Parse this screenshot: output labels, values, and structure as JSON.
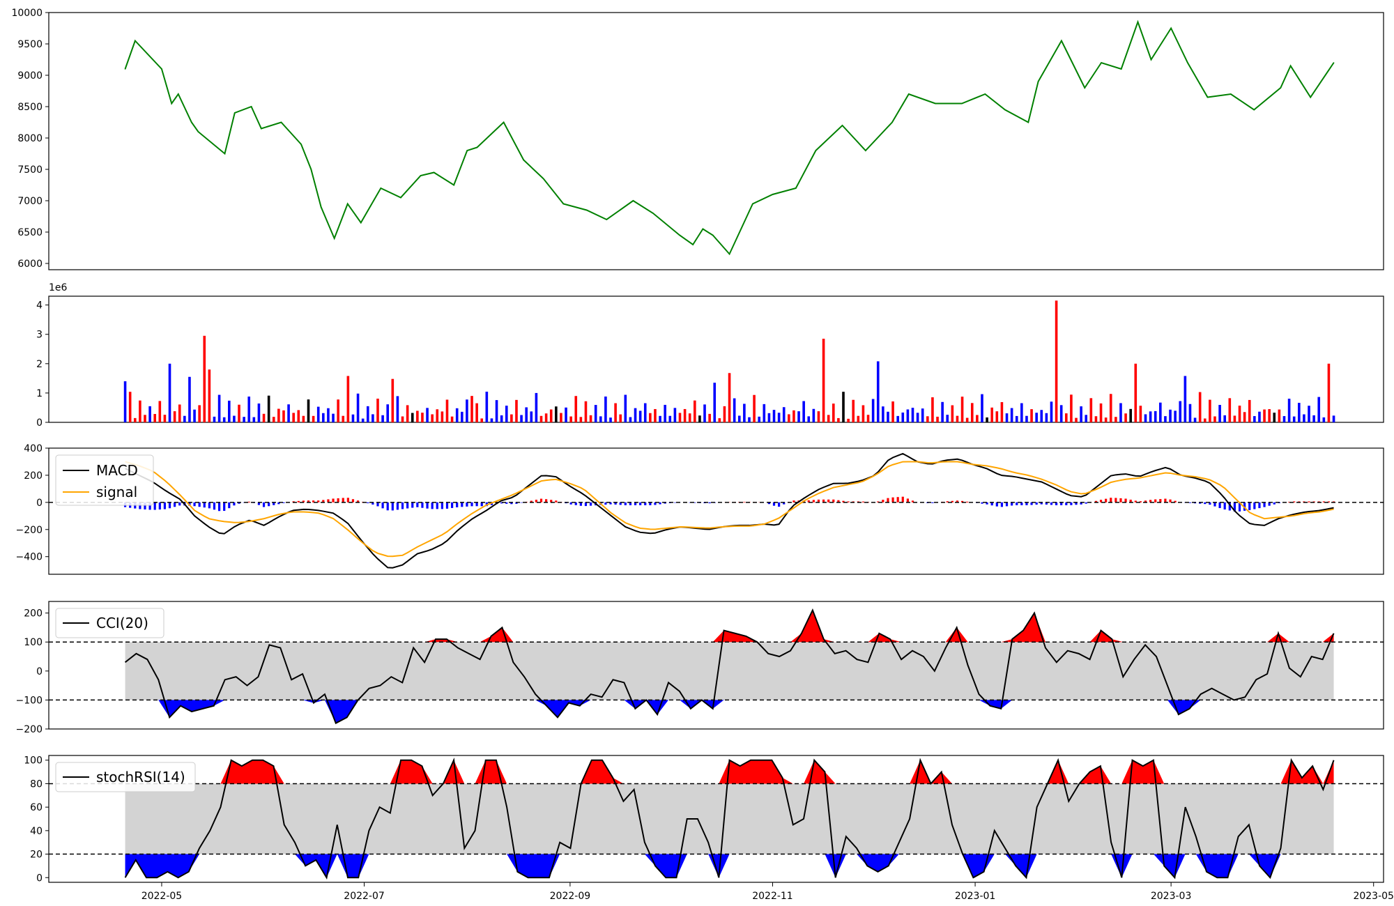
{
  "chart_data": [
    {
      "type": "line",
      "panel": "price",
      "color": "#008000",
      "ylim": [
        5900,
        10000
      ],
      "yticks": [
        "6000",
        "6500",
        "7000",
        "7500",
        "8000",
        "8500",
        "9000",
        "9500",
        "10000"
      ],
      "x": [
        "2022-04-20",
        "2022-04-23",
        "2022-05-01",
        "2022-05-04",
        "2022-05-06",
        "2022-05-10",
        "2022-05-12",
        "2022-05-20",
        "2022-05-23",
        "2022-05-28",
        "2022-05-31",
        "2022-06-06",
        "2022-06-12",
        "2022-06-15",
        "2022-06-18",
        "2022-06-22",
        "2022-06-26",
        "2022-06-30",
        "2022-07-06",
        "2022-07-12",
        "2022-07-18",
        "2022-07-22",
        "2022-07-28",
        "2022-08-01",
        "2022-08-04",
        "2022-08-12",
        "2022-08-18",
        "2022-08-24",
        "2022-08-30",
        "2022-09-06",
        "2022-09-12",
        "2022-09-20",
        "2022-09-26",
        "2022-10-04",
        "2022-10-08",
        "2022-10-11",
        "2022-10-14",
        "2022-10-19",
        "2022-10-26",
        "2022-11-01",
        "2022-11-08",
        "2022-11-14",
        "2022-11-22",
        "2022-11-29",
        "2022-12-07",
        "2022-12-12",
        "2022-12-20",
        "2022-12-28",
        "2023-01-04",
        "2023-01-10",
        "2023-01-17",
        "2023-01-20",
        "2023-01-27",
        "2023-02-03",
        "2023-02-08",
        "2023-02-14",
        "2023-02-19",
        "2023-02-23",
        "2023-03-01",
        "2023-03-06",
        "2023-03-12",
        "2023-03-19",
        "2023-03-26",
        "2023-04-03",
        "2023-04-06",
        "2023-04-12",
        "2023-04-19"
      ],
      "values": [
        9100,
        9550,
        9100,
        8550,
        8700,
        8250,
        8100,
        7750,
        8400,
        8500,
        8150,
        8250,
        7900,
        7500,
        6900,
        6400,
        6950,
        6650,
        7200,
        7050,
        7400,
        7450,
        7250,
        7800,
        7850,
        8250,
        7650,
        7350,
        6950,
        6850,
        6700,
        7000,
        6800,
        6450,
        6300,
        6550,
        6450,
        6150,
        6950,
        7100,
        7200,
        7800,
        8200,
        7800,
        8250,
        8700,
        8550,
        8550,
        8700,
        8450,
        8250,
        8900,
        9550,
        8800,
        9200,
        9100,
        9850,
        9250,
        9750,
        9200,
        8650,
        8700,
        8450,
        8800,
        9150,
        8650,
        9200
      ]
    },
    {
      "type": "bar",
      "panel": "volume",
      "offset_label": "1e6",
      "ylim": [
        0,
        4.3
      ],
      "yticks": [
        "0",
        "1",
        "2",
        "3",
        "4"
      ],
      "colors": {
        "up": "#ff0000",
        "down": "#0000ff",
        "flat": "#000000"
      },
      "bars": [
        {
          "x": "2022-04-20",
          "value": 1.4,
          "dir": "down"
        },
        {
          "x": "2022-05-04",
          "value": 2.0,
          "dir": "down"
        },
        {
          "x": "2022-05-10",
          "value": 1.55,
          "dir": "down"
        },
        {
          "x": "2022-05-14",
          "value": 2.95,
          "dir": "up"
        },
        {
          "x": "2022-05-16",
          "value": 1.8,
          "dir": "up"
        },
        {
          "x": "2022-06-14",
          "value": 0.78,
          "dir": "flat"
        },
        {
          "x": "2022-06-26",
          "value": 1.58,
          "dir": "up"
        },
        {
          "x": "2022-07-09",
          "value": 1.48,
          "dir": "up"
        },
        {
          "x": "2022-08-02",
          "value": 0.9,
          "dir": "up"
        },
        {
          "x": "2022-08-22",
          "value": 1.0,
          "dir": "down"
        },
        {
          "x": "2022-10-15",
          "value": 1.35,
          "dir": "down"
        },
        {
          "x": "2022-10-19",
          "value": 1.68,
          "dir": "up"
        },
        {
          "x": "2022-11-16",
          "value": 2.85,
          "dir": "up"
        },
        {
          "x": "2022-12-03",
          "value": 2.08,
          "dir": "down"
        },
        {
          "x": "2023-01-25",
          "value": 4.15,
          "dir": "up"
        },
        {
          "x": "2023-02-19",
          "value": 2.0,
          "dir": "up"
        },
        {
          "x": "2023-03-05",
          "value": 1.58,
          "dir": "down"
        },
        {
          "x": "2023-04-18",
          "value": 2.0,
          "dir": "up"
        }
      ],
      "baseline_values": [
        0.2,
        0.95,
        0.2,
        0.7,
        0.3,
        0.55,
        0.3,
        0.8,
        0.25,
        0.6,
        0.35,
        0.9,
        0.2,
        0.5,
        0.4,
        0.75,
        0.3,
        0.6
      ]
    },
    {
      "type": "line",
      "panel": "macd",
      "ylim": [
        -530,
        400
      ],
      "yticks": [
        "400",
        "200",
        "0",
        "−200",
        "−400"
      ],
      "zero_line": 0,
      "series": [
        {
          "name": "MACD",
          "color": "#000000",
          "values": [
            250,
            200,
            150,
            80,
            20,
            -100,
            -180,
            -240,
            -170,
            -130,
            -170,
            -110,
            -60,
            -50,
            -60,
            -80,
            -150,
            -280,
            -400,
            -490,
            -460,
            -380,
            -350,
            -300,
            -200,
            -120,
            -60,
            10,
            40,
            120,
            200,
            190,
            120,
            60,
            -20,
            -100,
            -180,
            -220,
            -230,
            -200,
            -180,
            -190,
            -200,
            -180,
            -170,
            -170,
            -160,
            -170,
            -30,
            40,
            100,
            140,
            140,
            160,
            200,
            320,
            360,
            300,
            280,
            310,
            320,
            280,
            250,
            200,
            190,
            170,
            150,
            100,
            50,
            40,
            120,
            200,
            210,
            190,
            230,
            260,
            200,
            180,
            150,
            50,
            -80,
            -160,
            -170,
            -120,
            -90,
            -70,
            -60,
            -40
          ]
        },
        {
          "name": "signal",
          "color": "#ffa500",
          "values": [
            300,
            270,
            230,
            150,
            50,
            -60,
            -120,
            -140,
            -150,
            -140,
            -120,
            -90,
            -70,
            -70,
            -80,
            -120,
            -200,
            -290,
            -370,
            -400,
            -390,
            -330,
            -280,
            -230,
            -150,
            -80,
            -20,
            20,
            60,
            110,
            160,
            170,
            140,
            100,
            10,
            -80,
            -150,
            -190,
            -200,
            -190,
            -180,
            -185,
            -190,
            -180,
            -175,
            -175,
            -160,
            -120,
            -50,
            20,
            70,
            110,
            130,
            150,
            200,
            270,
            300,
            300,
            290,
            300,
            300,
            280,
            270,
            250,
            220,
            200,
            170,
            130,
            80,
            60,
            100,
            150,
            170,
            180,
            200,
            220,
            200,
            190,
            170,
            120,
            20,
            -80,
            -120,
            -110,
            -100,
            -80,
            -70,
            -50
          ]
        }
      ],
      "histogram_colors": {
        "positive": "#ff0000",
        "negative": "#0000ff"
      },
      "legend_position": "upper-left"
    },
    {
      "type": "line",
      "panel": "cci",
      "ylim": [
        -200,
        240
      ],
      "yticks": [
        "200",
        "100",
        "0",
        "−100",
        "−200"
      ],
      "bands": [
        100,
        -100
      ],
      "band_fill": "#d3d3d3",
      "above_color": "#ff0000",
      "below_color": "#0000ff",
      "series": [
        {
          "name": "CCI(20)",
          "color": "#000000",
          "values": [
            30,
            60,
            40,
            -30,
            -160,
            -120,
            -140,
            -130,
            -120,
            -30,
            -20,
            -50,
            -20,
            90,
            80,
            -30,
            -10,
            -110,
            -80,
            -180,
            -160,
            -100,
            -60,
            -50,
            -20,
            -40,
            80,
            30,
            110,
            110,
            80,
            60,
            40,
            120,
            150,
            30,
            -20,
            -80,
            -120,
            -160,
            -110,
            -120,
            -80,
            -90,
            -30,
            -40,
            -130,
            -100,
            -150,
            -40,
            -70,
            -130,
            -100,
            -130,
            140,
            130,
            120,
            100,
            60,
            50,
            70,
            130,
            210,
            110,
            60,
            70,
            40,
            30,
            130,
            110,
            40,
            70,
            50,
            0,
            80,
            150,
            20,
            -80,
            -120,
            -130,
            110,
            140,
            200,
            80,
            30,
            70,
            60,
            40,
            140,
            110,
            -20,
            40,
            90,
            50,
            -50,
            -150,
            -130,
            -80,
            -60,
            -80,
            -100,
            -90,
            -30,
            -10,
            130,
            10,
            -20,
            50,
            40,
            130
          ]
        }
      ],
      "legend_position": "upper-left"
    },
    {
      "type": "line",
      "panel": "stochrsi",
      "ylim": [
        -4,
        104
      ],
      "yticks": [
        "100",
        "80",
        "60",
        "40",
        "20",
        "0"
      ],
      "bands": [
        80,
        20
      ],
      "band_fill": "#d3d3d3",
      "above_color": "#ff0000",
      "below_color": "#0000ff",
      "series": [
        {
          "name": "stochRSI(14)",
          "color": "#000000",
          "values": [
            0,
            15,
            0,
            0,
            5,
            0,
            5,
            25,
            40,
            60,
            100,
            95,
            100,
            100,
            95,
            45,
            30,
            10,
            15,
            0,
            45,
            0,
            0,
            40,
            60,
            55,
            100,
            100,
            95,
            70,
            80,
            100,
            25,
            40,
            100,
            100,
            60,
            5,
            0,
            0,
            0,
            30,
            25,
            80,
            100,
            100,
            85,
            65,
            75,
            30,
            10,
            0,
            0,
            50,
            50,
            30,
            0,
            100,
            95,
            100,
            100,
            100,
            85,
            45,
            50,
            100,
            90,
            0,
            35,
            25,
            10,
            5,
            10,
            30,
            50,
            100,
            80,
            90,
            45,
            20,
            0,
            5,
            40,
            25,
            10,
            0,
            60,
            80,
            100,
            65,
            80,
            90,
            95,
            30,
            0,
            100,
            95,
            100,
            10,
            0,
            60,
            35,
            5,
            0,
            0,
            35,
            45,
            10,
            0,
            25,
            100,
            85,
            95,
            75,
            100
          ]
        }
      ],
      "legend_position": "upper-left"
    }
  ],
  "x_axis": {
    "domain": [
      "2022-03-28",
      "2023-05-04"
    ],
    "ticks": [
      {
        "date": "2022-05-01",
        "label": "2022-05"
      },
      {
        "date": "2022-07-01",
        "label": "2022-07"
      },
      {
        "date": "2022-09-01",
        "label": "2022-09"
      },
      {
        "date": "2022-11-01",
        "label": "2022-11"
      },
      {
        "date": "2023-01-01",
        "label": "2023-01"
      },
      {
        "date": "2023-03-01",
        "label": "2023-03"
      },
      {
        "date": "2023-05-01",
        "label": "2023-05"
      }
    ],
    "series_start": "2022-04-20",
    "series_end": "2023-04-19"
  }
}
